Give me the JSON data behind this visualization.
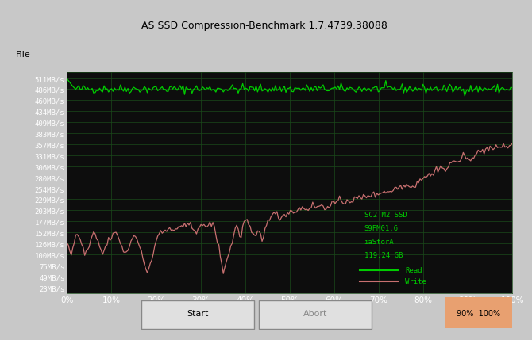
{
  "title": "AS SSD Compression-Benchmark 1.7.4739.38088",
  "window_title": "AS SSD Compression-Benchmark 1.7.4739.38088",
  "bg_color": "#0a0a0a",
  "plot_bg_color": "#0d0d0d",
  "grid_color": "#1a3a1a",
  "read_color": "#00cc00",
  "write_color": "#c87070",
  "ytick_labels": [
    "511MB/s",
    "486MB/s",
    "460MB/s",
    "434MB/s",
    "409MB/s",
    "383MB/s",
    "357MB/s",
    "331MB/s",
    "306MB/s",
    "280MB/s",
    "254MB/s",
    "229MB/s",
    "203MB/s",
    "177MB/s",
    "152MB/s",
    "126MB/s",
    "100MB/s",
    "75MB/s",
    "49MB/s",
    "23MB/s"
  ],
  "ytick_values": [
    511,
    486,
    460,
    434,
    409,
    383,
    357,
    331,
    306,
    280,
    254,
    229,
    203,
    177,
    152,
    126,
    100,
    75,
    49,
    23
  ],
  "xtick_labels": [
    "0%",
    "10%",
    "20%",
    "30%",
    "40%",
    "50%",
    "60%",
    "70%",
    "80%",
    "90%",
    "100%"
  ],
  "xtick_values": [
    0,
    10,
    20,
    30,
    40,
    50,
    60,
    70,
    80,
    90,
    100
  ],
  "ylim": [
    10,
    525
  ],
  "xlim": [
    0,
    100
  ],
  "legend_text": [
    "SC2 M2 SSD",
    "S9FM01.6",
    "iaStorA",
    "119.24 GB"
  ],
  "legend_read_label": "Read",
  "legend_write_label": "Write"
}
